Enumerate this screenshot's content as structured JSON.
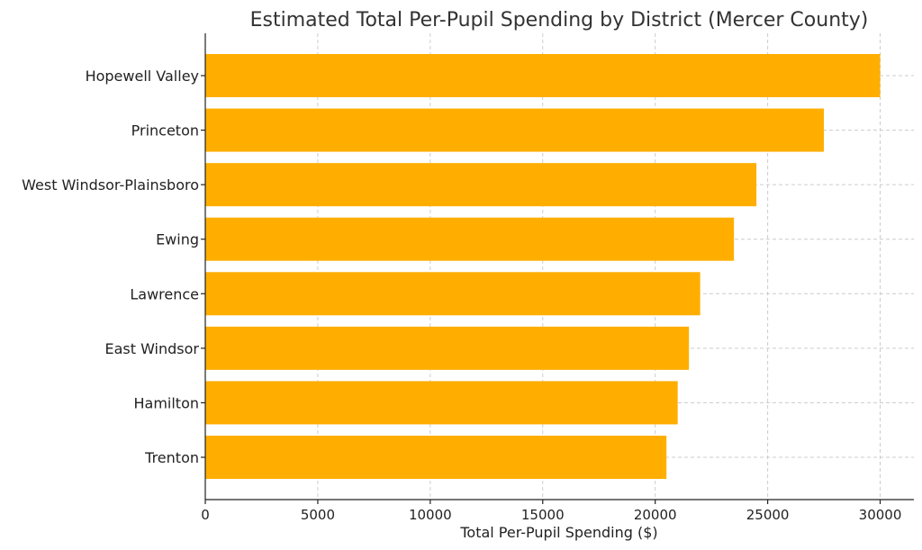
{
  "chart_data": {
    "type": "bar",
    "orientation": "horizontal",
    "title": "Estimated Total Per-Pupil Spending by District (Mercer County)",
    "xlabel": "Total Per-Pupil Spending ($)",
    "ylabel": "",
    "categories": [
      "Hopewell Valley",
      "Princeton",
      "West Windsor-Plainsboro",
      "Ewing",
      "Lawrence",
      "East Windsor",
      "Hamilton",
      "Trenton"
    ],
    "values": [
      30000,
      27500,
      24500,
      23500,
      22000,
      21500,
      21000,
      20500
    ],
    "xlim": [
      0,
      31500
    ],
    "xticks": [
      0,
      5000,
      10000,
      15000,
      20000,
      25000,
      30000
    ],
    "grid": true,
    "bar_color": "#FFAE00"
  }
}
